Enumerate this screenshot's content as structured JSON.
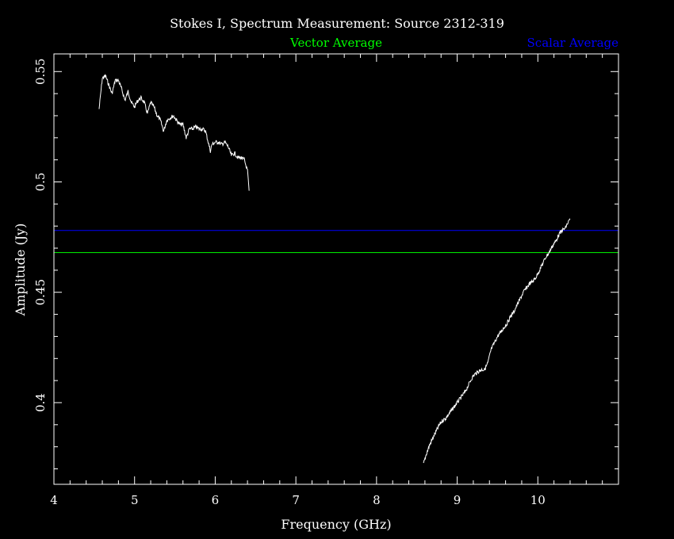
{
  "chart_data": {
    "type": "line",
    "title": "Stokes I, Spectrum Measurement: Source 2312-319",
    "xlabel": "Frequency (GHz)",
    "ylabel": "Amplitude (Jy)",
    "xlim": [
      4.0,
      11.0
    ],
    "ylim": [
      0.363,
      0.558
    ],
    "x_ticks": [
      4,
      5,
      6,
      7,
      8,
      9,
      10
    ],
    "x_tick_labels": [
      "4",
      "5",
      "6",
      "7",
      "8",
      "9",
      "10"
    ],
    "y_ticks": [
      0.4,
      0.45,
      0.5,
      0.55
    ],
    "y_tick_labels": [
      "0.4",
      "0.45",
      "0.5",
      "0.55"
    ],
    "legend": [
      {
        "name": "Vector Average",
        "color": "#00ff00"
      },
      {
        "name": "Scalar Average",
        "color": "#0000ff"
      }
    ],
    "reference_lines": [
      {
        "name": "Vector Average",
        "y": 0.468,
        "color": "#00ff00"
      },
      {
        "name": "Scalar Average",
        "y": 0.478,
        "color": "#0000ff"
      }
    ],
    "series": [
      {
        "color": "#ffffff",
        "x": [
          4.56,
          4.6,
          4.64,
          4.68,
          4.72,
          4.76,
          4.8,
          4.84,
          4.88,
          4.92,
          4.96,
          5.0,
          5.04,
          5.08,
          5.12,
          5.16,
          5.2,
          5.24,
          5.28,
          5.32,
          5.36,
          5.4,
          5.44,
          5.48,
          5.52,
          5.56,
          5.6,
          5.64,
          5.68,
          5.72,
          5.76,
          5.8,
          5.84,
          5.88,
          5.92,
          5.94,
          5.96,
          6.0,
          6.04,
          6.08,
          6.12,
          6.16,
          6.2,
          6.24,
          6.28,
          6.32,
          6.36,
          6.4,
          6.42
        ],
        "y": [
          0.533,
          0.547,
          0.548,
          0.544,
          0.54,
          0.546,
          0.546,
          0.542,
          0.537,
          0.541,
          0.536,
          0.534,
          0.537,
          0.538,
          0.536,
          0.531,
          0.536,
          0.534,
          0.53,
          0.528,
          0.523,
          0.528,
          0.529,
          0.53,
          0.528,
          0.526,
          0.526,
          0.52,
          0.524,
          0.524,
          0.525,
          0.524,
          0.524,
          0.523,
          0.517,
          0.514,
          0.517,
          0.518,
          0.518,
          0.517,
          0.518,
          0.516,
          0.512,
          0.513,
          0.511,
          0.511,
          0.51,
          0.505,
          0.496
        ]
      },
      {
        "color": "#ffffff",
        "x": [
          8.58,
          8.62,
          8.66,
          8.7,
          8.74,
          8.78,
          8.82,
          8.86,
          8.9,
          8.94,
          8.98,
          9.02,
          9.06,
          9.1,
          9.14,
          9.18,
          9.22,
          9.26,
          9.3,
          9.34,
          9.38,
          9.42,
          9.46,
          9.5,
          9.54,
          9.58,
          9.62,
          9.66,
          9.7,
          9.74,
          9.78,
          9.82,
          9.86,
          9.9,
          9.94,
          9.98,
          10.02,
          10.06,
          10.1,
          10.14,
          10.18,
          10.22,
          10.26,
          10.3,
          10.34,
          10.38,
          10.4
        ],
        "y": [
          0.372,
          0.377,
          0.381,
          0.384,
          0.387,
          0.39,
          0.392,
          0.393,
          0.395,
          0.397,
          0.399,
          0.401,
          0.403,
          0.405,
          0.408,
          0.411,
          0.413,
          0.414,
          0.415,
          0.415,
          0.418,
          0.424,
          0.427,
          0.43,
          0.432,
          0.434,
          0.436,
          0.439,
          0.441,
          0.444,
          0.447,
          0.45,
          0.452,
          0.454,
          0.455,
          0.457,
          0.46,
          0.463,
          0.466,
          0.468,
          0.471,
          0.473,
          0.476,
          0.478,
          0.479,
          0.482,
          0.483
        ]
      }
    ]
  }
}
